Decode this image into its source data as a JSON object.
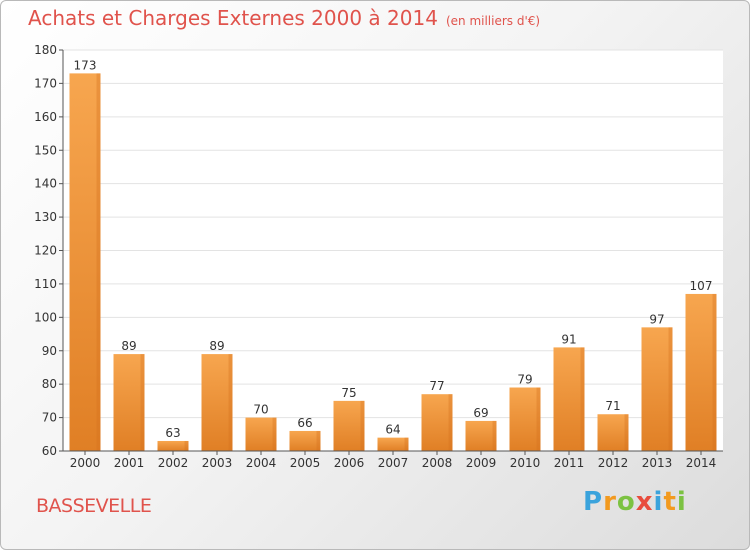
{
  "title": "Achats et Charges Externes 2000 à 2014",
  "subtitle": "(en milliers d'€)",
  "commune": "BASSEVELLE",
  "logo": {
    "letters": [
      "P",
      "r",
      "o",
      "x",
      "i",
      "t",
      "i"
    ],
    "colors": [
      "#3aa3dc",
      "#f29a1f",
      "#7cc242",
      "#e84c3d",
      "#3aa3dc",
      "#f29a1f",
      "#7cc242"
    ]
  },
  "colors": {
    "bar": "#f0963c",
    "bar_dark": "#d46f1c",
    "title": "#e0534c",
    "grid": "#e3e3e3"
  },
  "chart_data": {
    "type": "bar",
    "categories": [
      "2000",
      "2001",
      "2002",
      "2003",
      "2004",
      "2005",
      "2006",
      "2007",
      "2008",
      "2009",
      "2010",
      "2011",
      "2012",
      "2013",
      "2014"
    ],
    "values": [
      173,
      89,
      63,
      89,
      70,
      66,
      75,
      64,
      77,
      69,
      79,
      91,
      71,
      97,
      107
    ],
    "ylim": [
      60,
      180
    ],
    "yticks": [
      60,
      70,
      80,
      90,
      100,
      110,
      120,
      130,
      140,
      150,
      160,
      170,
      180
    ],
    "grid": true
  }
}
